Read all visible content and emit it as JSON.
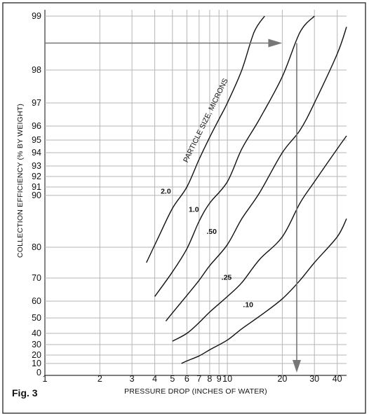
{
  "figure_label": "Fig. 3",
  "chart_data": {
    "type": "line",
    "xlabel": "PRESSURE DROP (INCHES OF WATER)",
    "ylabel": "COLLECTION EFFICIENCY (% BY WEIGHT)",
    "x_scale": "log",
    "xlim": [
      1,
      45
    ],
    "x_ticks": [
      "1",
      "2",
      "3",
      "4",
      "5",
      "6",
      "7",
      "8",
      "9",
      "10",
      "20",
      "30",
      "40"
    ],
    "y_scale": "probability",
    "y_ticks": [
      "0",
      "10",
      "20",
      "30",
      "40",
      "50",
      "60",
      "70",
      "80",
      "90",
      "91",
      "92",
      "93",
      "94",
      "95",
      "96",
      "97",
      "98",
      "99"
    ],
    "grid": true,
    "series_label": "PARTICLE SIZE, MICRONS",
    "series": [
      {
        "name": "2.0",
        "points": [
          [
            3.6,
            75
          ],
          [
            4.2,
            82
          ],
          [
            5.0,
            87.5
          ],
          [
            6.0,
            91
          ],
          [
            7.0,
            93.5
          ],
          [
            8.0,
            95.2
          ],
          [
            9.0,
            96.3
          ],
          [
            10,
            97
          ],
          [
            12,
            98
          ],
          [
            14,
            98.7
          ],
          [
            16,
            99
          ]
        ]
      },
      {
        "name": "1.0",
        "points": [
          [
            4.0,
            62
          ],
          [
            5.0,
            72
          ],
          [
            6.0,
            79.5
          ],
          [
            7.0,
            85
          ],
          [
            8.0,
            88.5
          ],
          [
            10,
            91.5
          ],
          [
            12,
            94.3
          ],
          [
            15,
            96.3
          ],
          [
            20,
            97.8
          ],
          [
            25,
            98.7
          ],
          [
            30,
            99
          ]
        ]
      },
      {
        "name": ".50",
        "points": [
          [
            4.6,
            48
          ],
          [
            5.0,
            53
          ],
          [
            6.0,
            62.5
          ],
          [
            7.0,
            69
          ],
          [
            8.0,
            74
          ],
          [
            10,
            80.5
          ],
          [
            12,
            85.5
          ],
          [
            15,
            90.3
          ],
          [
            20,
            94
          ],
          [
            25,
            95.7
          ],
          [
            30,
            97
          ],
          [
            40,
            98.3
          ],
          [
            45,
            98.8
          ]
        ]
      },
      {
        "name": ".25",
        "points": [
          [
            5.0,
            33
          ],
          [
            6.0,
            40
          ],
          [
            7.0,
            47
          ],
          [
            8.0,
            53.5
          ],
          [
            10,
            62
          ],
          [
            12,
            68
          ],
          [
            15,
            76
          ],
          [
            20,
            82
          ],
          [
            25,
            88.5
          ],
          [
            30,
            91.5
          ],
          [
            40,
            94.3
          ],
          [
            45,
            95.3
          ]
        ]
      },
      {
        "name": ".10",
        "points": [
          [
            5.6,
            10
          ],
          [
            6.0,
            13
          ],
          [
            7.0,
            19
          ],
          [
            8.0,
            25
          ],
          [
            10,
            34
          ],
          [
            12,
            43
          ],
          [
            15,
            51
          ],
          [
            20,
            61
          ],
          [
            25,
            69
          ],
          [
            30,
            75
          ],
          [
            40,
            82
          ],
          [
            45,
            85.5
          ]
        ]
      }
    ],
    "annotation": {
      "horizontal_at_efficiency": 98.5,
      "from_x": 1.0,
      "to_x": 20,
      "vertical_at_pressure": 24,
      "down_to": 0
    }
  }
}
